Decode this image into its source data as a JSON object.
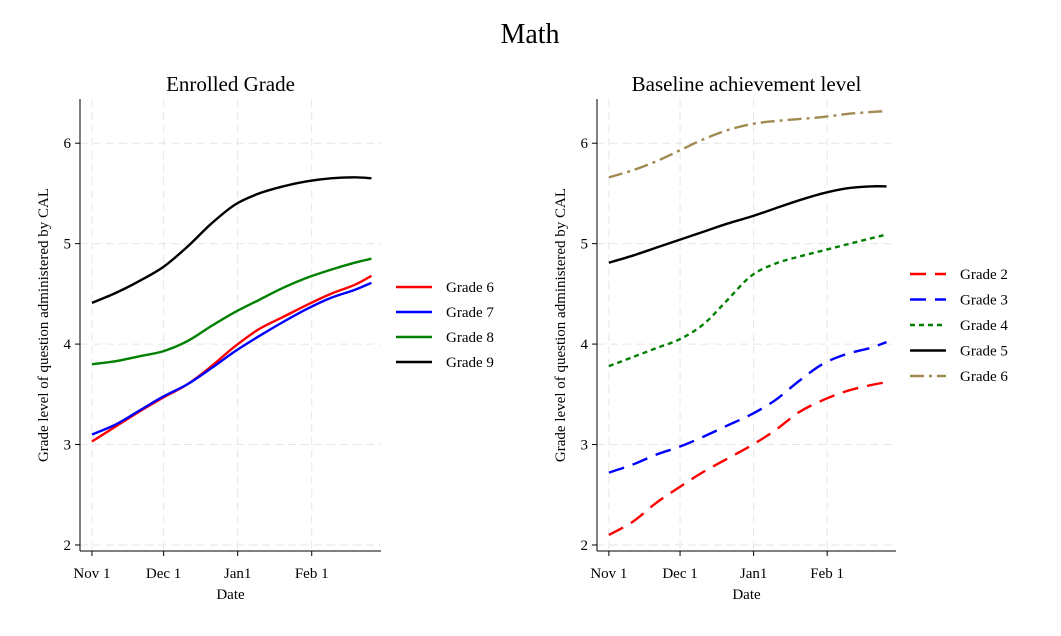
{
  "title": "Math",
  "chart_data": [
    {
      "type": "line",
      "title": "Enrolled Grade",
      "xlabel": "Date",
      "ylabel": "Grade level of question administered by CAL",
      "x_ticks": [
        "Nov 1",
        "Dec 1",
        "Jan1",
        "Feb 1"
      ],
      "x_tick_dates": [
        "2015-11-01",
        "2015-12-01",
        "2016-01-01",
        "2016-02-01"
      ],
      "xlim": [
        "2015-10-27",
        "2016-03-01"
      ],
      "y_ticks": [
        2,
        3,
        4,
        5,
        6
      ],
      "ylim": [
        1.94,
        6.44
      ],
      "grid": true,
      "legend_position": "right",
      "x": [
        "2015-11-01",
        "2015-11-11",
        "2015-11-21",
        "2015-12-01",
        "2015-12-11",
        "2015-12-21",
        "2015-12-31",
        "2016-01-10",
        "2016-01-20",
        "2016-01-30",
        "2016-02-09",
        "2016-02-19",
        "2016-02-26"
      ],
      "series": [
        {
          "name": "Grade 6",
          "color": "#ff0000",
          "dash": "solid",
          "values": [
            3.03,
            3.18,
            3.33,
            3.47,
            3.6,
            3.78,
            3.98,
            4.15,
            4.27,
            4.39,
            4.5,
            4.59,
            4.68
          ]
        },
        {
          "name": "Grade 7",
          "color": "#0000ff",
          "dash": "solid",
          "values": [
            3.1,
            3.2,
            3.34,
            3.48,
            3.6,
            3.76,
            3.93,
            4.08,
            4.22,
            4.35,
            4.46,
            4.54,
            4.61
          ]
        },
        {
          "name": "Grade 8",
          "color": "#008000",
          "dash": "solid",
          "values": [
            3.8,
            3.83,
            3.88,
            3.93,
            4.03,
            4.18,
            4.32,
            4.44,
            4.56,
            4.66,
            4.74,
            4.81,
            4.85
          ]
        },
        {
          "name": "Grade 9",
          "color": "#000000",
          "dash": "solid",
          "values": [
            4.41,
            4.51,
            4.63,
            4.77,
            4.97,
            5.2,
            5.39,
            5.5,
            5.57,
            5.62,
            5.65,
            5.66,
            5.65
          ]
        }
      ]
    },
    {
      "type": "line",
      "title": "Baseline achievement level",
      "xlabel": "Date",
      "ylabel": "Grade level of question administered by CAL",
      "x_ticks": [
        "Nov 1",
        "Dec 1",
        "Jan1",
        "Feb 1"
      ],
      "x_tick_dates": [
        "2015-11-01",
        "2015-12-01",
        "2016-01-01",
        "2016-02-01"
      ],
      "xlim": [
        "2015-10-27",
        "2016-03-01"
      ],
      "y_ticks": [
        2,
        3,
        4,
        5,
        6
      ],
      "ylim": [
        1.94,
        6.44
      ],
      "grid": true,
      "legend_position": "right",
      "x": [
        "2015-11-01",
        "2015-11-11",
        "2015-11-21",
        "2015-12-01",
        "2015-12-11",
        "2015-12-21",
        "2015-12-31",
        "2016-01-10",
        "2016-01-20",
        "2016-01-30",
        "2016-02-09",
        "2016-02-19",
        "2016-02-26"
      ],
      "series": [
        {
          "name": "Grade 2",
          "color": "#ff0000",
          "dash": "long-dash",
          "values": [
            2.1,
            2.23,
            2.42,
            2.58,
            2.73,
            2.86,
            2.99,
            3.14,
            3.32,
            3.44,
            3.53,
            3.59,
            3.62
          ]
        },
        {
          "name": "Grade 3",
          "color": "#0000ff",
          "dash": "long-dash",
          "values": [
            2.72,
            2.8,
            2.9,
            2.98,
            3.08,
            3.19,
            3.3,
            3.44,
            3.63,
            3.8,
            3.9,
            3.96,
            4.02
          ]
        },
        {
          "name": "Grade 4",
          "color": "#008000",
          "dash": "short-dash",
          "values": [
            3.78,
            3.87,
            3.96,
            4.05,
            4.2,
            4.44,
            4.68,
            4.8,
            4.87,
            4.93,
            4.99,
            5.05,
            5.09
          ]
        },
        {
          "name": "Grade 5",
          "color": "#000000",
          "dash": "solid",
          "values": [
            4.81,
            4.88,
            4.96,
            5.04,
            5.12,
            5.2,
            5.27,
            5.35,
            5.43,
            5.5,
            5.55,
            5.57,
            5.57
          ]
        },
        {
          "name": "Grade 6",
          "color": "#a08a50",
          "dash": "dash-dot",
          "values": [
            5.66,
            5.73,
            5.82,
            5.93,
            6.04,
            6.13,
            6.19,
            6.22,
            6.24,
            6.26,
            6.29,
            6.31,
            6.32
          ]
        }
      ]
    }
  ]
}
